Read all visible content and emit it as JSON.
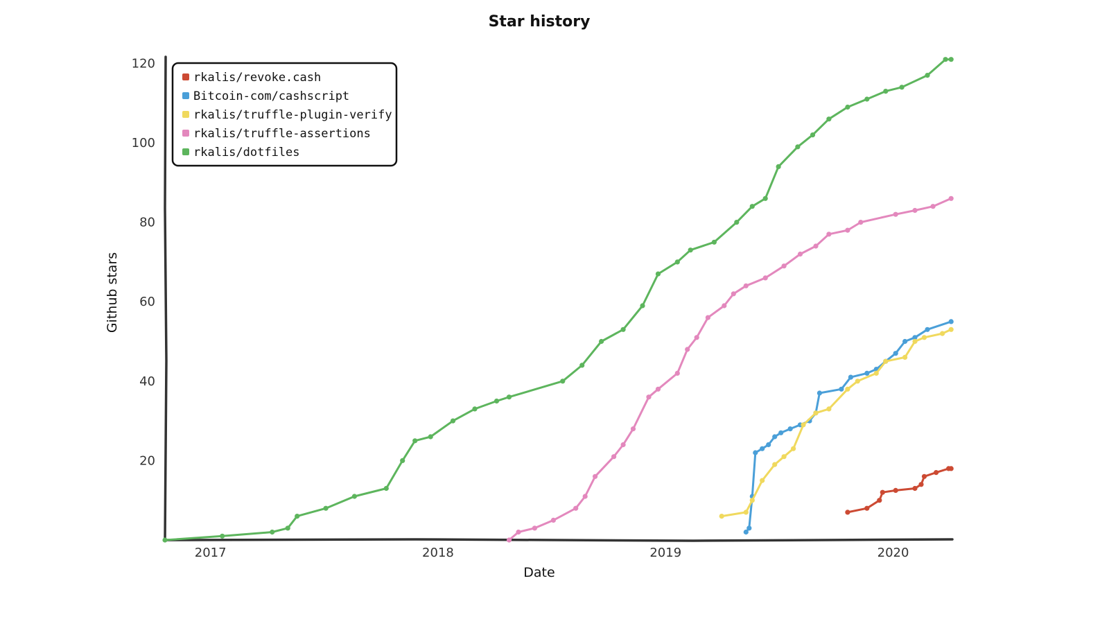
{
  "chart_data": {
    "type": "line",
    "title": "Star history",
    "xlabel": "Date",
    "ylabel": "Github stars",
    "x_tick_labels": [
      "2017",
      "2018",
      "2019",
      "2020"
    ],
    "y_tick_labels": [
      "20",
      "40",
      "60",
      "80",
      "100",
      "120"
    ],
    "xlim": [
      "2016-10-20",
      "2020-04-05"
    ],
    "ylim": [
      0,
      122
    ],
    "grid": false,
    "legend_position": "top-left",
    "series": [
      {
        "name": "rkalis/revoke.cash",
        "color": "#cc4a33",
        "points": [
          [
            "2019-10-20",
            7
          ],
          [
            "2019-11-20",
            8
          ],
          [
            "2019-12-10",
            10
          ],
          [
            "2019-12-15",
            12
          ],
          [
            "2020-01-05",
            12.5
          ],
          [
            "2020-02-05",
            13
          ],
          [
            "2020-02-15",
            14
          ],
          [
            "2020-02-20",
            16
          ],
          [
            "2020-03-10",
            17
          ],
          [
            "2020-03-30",
            18
          ],
          [
            "2020-04-03",
            18
          ]
        ]
      },
      {
        "name": "Bitcoin-com/cashscript",
        "color": "#4a9fd8",
        "points": [
          [
            "2019-05-10",
            2
          ],
          [
            "2019-05-15",
            3
          ],
          [
            "2019-05-20",
            11
          ],
          [
            "2019-05-25",
            22
          ],
          [
            "2019-06-05",
            23
          ],
          [
            "2019-06-15",
            24
          ],
          [
            "2019-06-25",
            26
          ],
          [
            "2019-07-05",
            27
          ],
          [
            "2019-07-20",
            28
          ],
          [
            "2019-08-05",
            29
          ],
          [
            "2019-08-20",
            30
          ],
          [
            "2019-08-30",
            32
          ],
          [
            "2019-09-05",
            37
          ],
          [
            "2019-10-10",
            38
          ],
          [
            "2019-10-25",
            41
          ],
          [
            "2019-11-20",
            42
          ],
          [
            "2019-12-05",
            43
          ],
          [
            "2019-12-20",
            45
          ],
          [
            "2020-01-05",
            47
          ],
          [
            "2020-01-20",
            50
          ],
          [
            "2020-02-05",
            51
          ],
          [
            "2020-02-25",
            53
          ],
          [
            "2020-04-03",
            55
          ]
        ]
      },
      {
        "name": "rkalis/truffle-plugin-verify",
        "color": "#f0d95e",
        "points": [
          [
            "2019-04-01",
            6
          ],
          [
            "2019-05-10",
            7
          ],
          [
            "2019-05-20",
            10
          ],
          [
            "2019-06-05",
            15
          ],
          [
            "2019-06-25",
            19
          ],
          [
            "2019-07-10",
            21
          ],
          [
            "2019-07-25",
            23
          ],
          [
            "2019-08-10",
            29
          ],
          [
            "2019-08-30",
            32
          ],
          [
            "2019-09-20",
            33
          ],
          [
            "2019-10-20",
            38
          ],
          [
            "2019-11-05",
            40
          ],
          [
            "2019-12-05",
            42
          ],
          [
            "2019-12-20",
            45
          ],
          [
            "2020-01-20",
            46
          ],
          [
            "2020-02-05",
            50
          ],
          [
            "2020-02-20",
            51
          ],
          [
            "2020-03-20",
            52
          ],
          [
            "2020-04-03",
            53
          ]
        ]
      },
      {
        "name": "rkalis/truffle-assertions",
        "color": "#e388bd",
        "points": [
          [
            "2018-04-25",
            0
          ],
          [
            "2018-05-10",
            2
          ],
          [
            "2018-06-05",
            3
          ],
          [
            "2018-07-05",
            5
          ],
          [
            "2018-08-10",
            8
          ],
          [
            "2018-08-25",
            11
          ],
          [
            "2018-09-10",
            16
          ],
          [
            "2018-10-10",
            21
          ],
          [
            "2018-10-25",
            24
          ],
          [
            "2018-11-10",
            28
          ],
          [
            "2018-12-05",
            36
          ],
          [
            "2018-12-20",
            38
          ],
          [
            "2019-01-20",
            42
          ],
          [
            "2019-02-05",
            48
          ],
          [
            "2019-02-20",
            51
          ],
          [
            "2019-03-10",
            56
          ],
          [
            "2019-04-05",
            59
          ],
          [
            "2019-04-20",
            62
          ],
          [
            "2019-05-10",
            64
          ],
          [
            "2019-06-10",
            66
          ],
          [
            "2019-07-10",
            69
          ],
          [
            "2019-08-05",
            72
          ],
          [
            "2019-08-30",
            74
          ],
          [
            "2019-09-20",
            77
          ],
          [
            "2019-10-20",
            78
          ],
          [
            "2019-11-10",
            80
          ],
          [
            "2020-01-05",
            82
          ],
          [
            "2020-02-05",
            83
          ],
          [
            "2020-03-05",
            84
          ],
          [
            "2020-04-03",
            86
          ]
        ]
      },
      {
        "name": "rkalis/dotfiles",
        "color": "#5db55d",
        "points": [
          [
            "2016-10-20",
            0
          ],
          [
            "2017-01-20",
            1
          ],
          [
            "2017-04-10",
            2
          ],
          [
            "2017-05-05",
            3
          ],
          [
            "2017-05-20",
            6
          ],
          [
            "2017-07-05",
            8
          ],
          [
            "2017-08-20",
            11
          ],
          [
            "2017-10-10",
            13
          ],
          [
            "2017-11-05",
            20
          ],
          [
            "2017-11-25",
            25
          ],
          [
            "2017-12-20",
            26
          ],
          [
            "2018-01-25",
            30
          ],
          [
            "2018-03-01",
            33
          ],
          [
            "2018-04-05",
            35
          ],
          [
            "2018-04-25",
            36
          ],
          [
            "2018-07-20",
            40
          ],
          [
            "2018-08-20",
            44
          ],
          [
            "2018-09-20",
            50
          ],
          [
            "2018-10-25",
            53
          ],
          [
            "2018-11-25",
            59
          ],
          [
            "2018-12-20",
            67
          ],
          [
            "2019-01-20",
            70
          ],
          [
            "2019-02-10",
            73
          ],
          [
            "2019-03-20",
            75
          ],
          [
            "2019-04-25",
            80
          ],
          [
            "2019-05-20",
            84
          ],
          [
            "2019-06-10",
            86
          ],
          [
            "2019-07-01",
            94
          ],
          [
            "2019-08-01",
            99
          ],
          [
            "2019-08-25",
            102
          ],
          [
            "2019-09-20",
            106
          ],
          [
            "2019-10-20",
            109
          ],
          [
            "2019-11-20",
            111
          ],
          [
            "2019-12-20",
            113
          ],
          [
            "2020-01-15",
            114
          ],
          [
            "2020-02-25",
            117
          ],
          [
            "2020-03-25",
            121
          ],
          [
            "2020-04-03",
            121
          ]
        ]
      }
    ]
  }
}
